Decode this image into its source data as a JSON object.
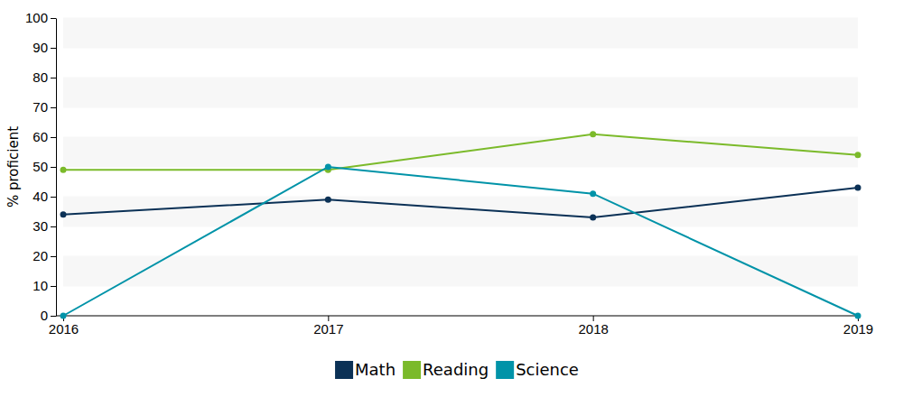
{
  "chart_data": {
    "type": "line",
    "y_label": "% proficient",
    "categories": [
      "2016",
      "2017",
      "2018",
      "2019"
    ],
    "series": [
      {
        "name": "Math",
        "color": "#0b3156",
        "values": [
          34,
          39,
          33,
          43
        ]
      },
      {
        "name": "Reading",
        "color": "#7bba2a",
        "values": [
          49,
          49,
          61,
          54
        ]
      },
      {
        "name": "Science",
        "color": "#0093a8",
        "values": [
          0,
          50,
          41,
          0
        ]
      }
    ],
    "ylim": [
      0,
      100
    ],
    "yticks": [
      0,
      10,
      20,
      30,
      40,
      50,
      60,
      70,
      80,
      90,
      100
    ],
    "grid": true,
    "legend": "bottom",
    "marker": "circle"
  }
}
